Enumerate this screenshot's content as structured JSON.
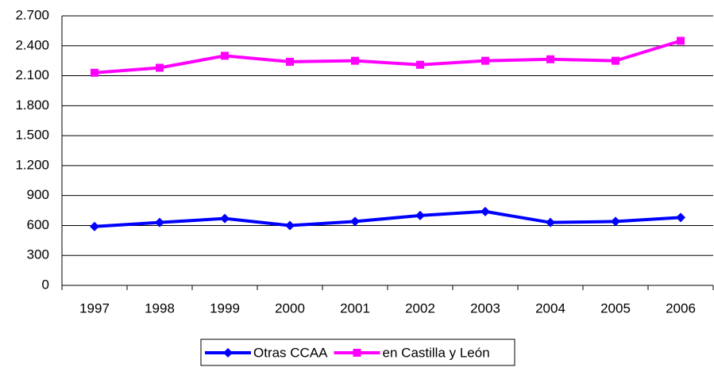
{
  "chart_data": {
    "type": "line",
    "categories": [
      "1997",
      "1998",
      "1999",
      "2000",
      "2001",
      "2002",
      "2003",
      "2004",
      "2005",
      "2006"
    ],
    "series": [
      {
        "name": "Otras CCAA",
        "color": "#0000ff",
        "marker": "diamond",
        "values": [
          590,
          630,
          670,
          600,
          640,
          700,
          740,
          630,
          640,
          680
        ]
      },
      {
        "name": "en Castilla y León",
        "color": "#ff00ff",
        "marker": "square",
        "values": [
          2130,
          2180,
          2300,
          2240,
          2250,
          2210,
          2250,
          2265,
          2250,
          2450
        ]
      }
    ],
    "ylim": [
      0,
      2700
    ],
    "yticks": [
      0,
      300,
      600,
      900,
      {
        "value": 1200,
        "label": "1.200"
      },
      {
        "value": 1500,
        "label": "1.500"
      },
      {
        "value": 1800,
        "label": "1.800"
      },
      {
        "value": 2100,
        "label": "2.100"
      },
      {
        "value": 2400,
        "label": "2.400"
      },
      {
        "value": 2700,
        "label": "2.700"
      }
    ],
    "grid": true,
    "legend": "bottom"
  }
}
